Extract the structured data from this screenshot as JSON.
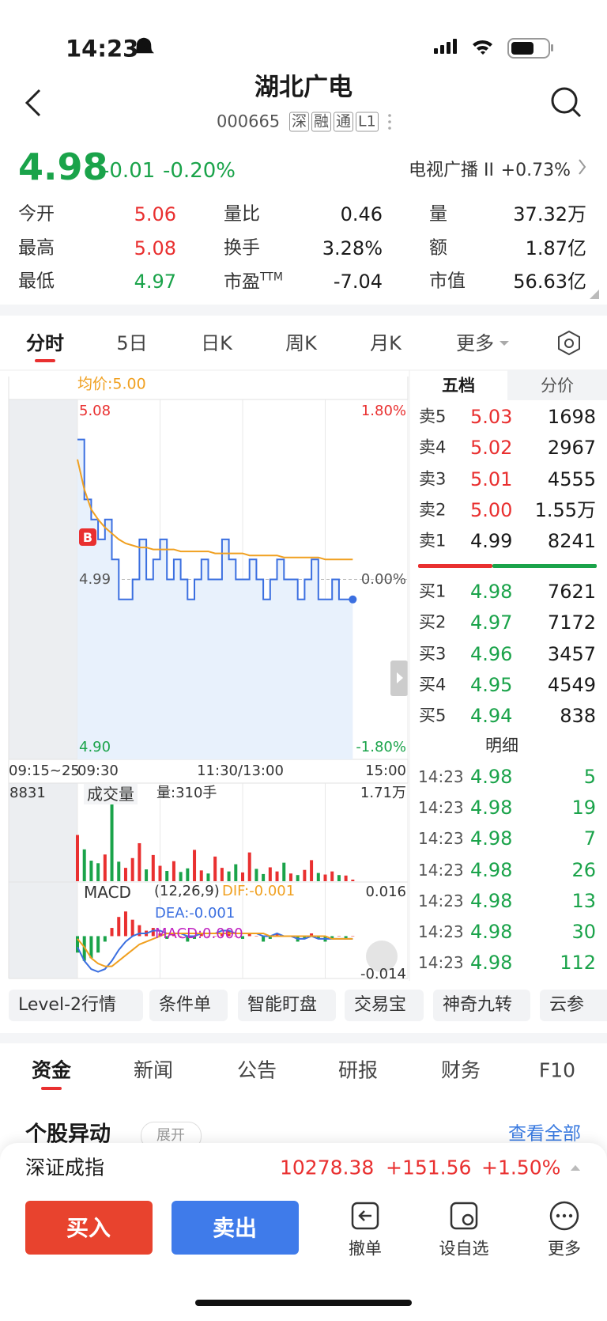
{
  "status_bar": {
    "time": "14:23"
  },
  "header": {
    "title": "湖北广电",
    "code": "000665",
    "tags": [
      "深",
      "融",
      "通",
      "L1"
    ]
  },
  "quote": {
    "price": "4.98",
    "change": "-0.01",
    "change_pct": "-0.20%",
    "sector": "电视广播 II",
    "sector_change": "+0.73%"
  },
  "stats": [
    {
      "label": "今开",
      "value": "5.06",
      "color": "#e93030"
    },
    {
      "label": "量比",
      "value": "0.46"
    },
    {
      "label": "量",
      "value": "37.32万"
    },
    {
      "label": "最高",
      "value": "5.08",
      "color": "#e93030"
    },
    {
      "label": "换手",
      "value": "3.28%"
    },
    {
      "label": "额",
      "value": "1.87亿"
    },
    {
      "label": "最低",
      "value": "4.97",
      "color": "#1aa34a"
    },
    {
      "label": "市盈",
      "sup": "TTM",
      "value": "-7.04"
    },
    {
      "label": "市值",
      "value": "56.63亿"
    }
  ],
  "period_tabs": [
    "分时",
    "5日",
    "日K",
    "周K",
    "月K",
    "更多"
  ],
  "chart_data": {
    "type": "line",
    "avg_label": "均价:5.00",
    "buy_marker": "B",
    "x_labels": [
      "09:15~25",
      "09:30",
      "11:30/13:00",
      "15:00"
    ],
    "price": [
      5.06,
      5.03,
      5.02,
      5.01,
      5.02,
      5.0,
      4.98,
      4.98,
      4.99,
      5.01,
      4.99,
      5.0,
      5.01,
      4.99,
      5.0,
      4.99,
      4.98,
      4.99,
      5.0,
      4.99,
      4.99,
      5.01,
      5.0,
      4.99,
      4.99,
      5.0,
      4.99,
      4.98,
      4.99,
      5.0,
      4.99,
      4.99,
      4.98,
      4.99,
      5.0,
      4.98,
      4.98,
      4.99,
      4.98,
      4.98,
      4.98
    ],
    "avg": [
      5.05,
      5.035,
      5.025,
      5.02,
      5.016,
      5.013,
      5.01,
      5.008,
      5.007,
      5.006,
      5.006,
      5.005,
      5.005,
      5.005,
      5.005,
      5.004,
      5.004,
      5.004,
      5.004,
      5.004,
      5.003,
      5.003,
      5.003,
      5.003,
      5.003,
      5.002,
      5.002,
      5.002,
      5.002,
      5.002,
      5.001,
      5.001,
      5.001,
      5.001,
      5.001,
      5.001,
      5.0,
      5.0,
      5.0,
      5.0,
      5.0
    ],
    "price_color": "#3b6fe0",
    "avg_color": "#f0a020",
    "ylim": [
      4.9,
      5.08
    ],
    "yticks": [
      {
        "value": 5.08,
        "label": "5.08"
      },
      {
        "value": 4.99,
        "label": "4.99"
      },
      {
        "value": 4.9,
        "label": "4.90"
      }
    ],
    "y2lim": [
      -1.8,
      1.8
    ],
    "y2ticks": [
      {
        "value": 1.8,
        "label": "1.80%"
      },
      {
        "value": 0,
        "label": "0.00%"
      },
      {
        "value": -1.8,
        "label": "-1.80%"
      }
    ],
    "volume": {
      "label": "成交量",
      "current": "量:310手",
      "premarket": "8831",
      "values": [
        9000,
        6200,
        4000,
        3500,
        5200,
        17100,
        3800,
        2600,
        4500,
        7400,
        2300,
        5100,
        3000,
        2000,
        3900,
        1800,
        2500,
        6100,
        2100,
        1500,
        4800,
        2600,
        1900,
        3300,
        1700,
        5600,
        2400,
        1400,
        2700,
        1900,
        3600,
        1500,
        1200,
        2200,
        4100,
        1600,
        1300,
        1900,
        1200,
        1100,
        310
      ],
      "ylim": [
        0,
        17100
      ],
      "yticks": [
        {
          "value": 17100,
          "label": "1.71万"
        }
      ]
    },
    "macd": {
      "label": "MACD",
      "params": "(12,26,9)",
      "dif_label": "DIF:-0.001",
      "dea_label": "DEA:-0.001",
      "macd_label": "MACD:0.000",
      "hist": [
        -0.006,
        -0.009,
        -0.008,
        -0.006,
        -0.002,
        0.003,
        0.007,
        0.009,
        0.006,
        0.004,
        0.002,
        0.003,
        0.001,
        -0.001,
        0.001,
        0.0,
        -0.002,
        -0.001,
        0.001,
        0.0,
        0.0,
        0.001,
        0.002,
        0.0,
        -0.001,
        0.001,
        0.0,
        -0.002,
        -0.001,
        0.001,
        0.0,
        0.0,
        -0.002,
        -0.001,
        0.001,
        -0.001,
        -0.002,
        -0.001,
        0.0,
        -0.001,
        0.0
      ],
      "dif": [
        -0.004,
        -0.009,
        -0.012,
        -0.013,
        -0.012,
        -0.009,
        -0.005,
        -0.002,
        0.0,
        0.001,
        0.001,
        0.002,
        0.002,
        0.001,
        0.001,
        0.001,
        0.0,
        0.0,
        0.001,
        0.001,
        0.001,
        0.002,
        0.002,
        0.001,
        0.001,
        0.001,
        0.001,
        0.0,
        0.0,
        0.001,
        0.0,
        0.0,
        -0.001,
        -0.001,
        0.0,
        -0.001,
        -0.001,
        -0.001,
        -0.001,
        -0.001,
        -0.001
      ],
      "dea": [
        -0.001,
        -0.004,
        -0.008,
        -0.01,
        -0.011,
        -0.011,
        -0.009,
        -0.007,
        -0.005,
        -0.003,
        -0.002,
        -0.001,
        0.0,
        0.001,
        0.001,
        0.001,
        0.001,
        0.001,
        0.001,
        0.001,
        0.001,
        0.001,
        0.001,
        0.001,
        0.001,
        0.001,
        0.001,
        0.001,
        0.0,
        0.0,
        0.0,
        0.0,
        0.0,
        0.0,
        0.0,
        0.0,
        0.0,
        -0.001,
        -0.001,
        -0.001,
        -0.001
      ],
      "ylim": [
        -0.014,
        0.016
      ],
      "yticks": [
        0.016,
        -0.014
      ]
    }
  },
  "order_book": {
    "tabs": [
      "五档",
      "分价"
    ],
    "asks": [
      {
        "label": "卖5",
        "price": "5.03",
        "volume": "1698",
        "color": "#e93030"
      },
      {
        "label": "卖4",
        "price": "5.02",
        "volume": "2967",
        "color": "#e93030"
      },
      {
        "label": "卖3",
        "price": "5.01",
        "volume": "4555",
        "color": "#e93030"
      },
      {
        "label": "卖2",
        "price": "5.00",
        "volume": "1.55万",
        "color": "#e93030"
      },
      {
        "label": "卖1",
        "price": "4.99",
        "volume": "8241",
        "color": "#1a1a1a"
      }
    ],
    "bids": [
      {
        "label": "买1",
        "price": "4.98",
        "volume": "7621",
        "color": "#1aa34a"
      },
      {
        "label": "买2",
        "price": "4.97",
        "volume": "7172",
        "color": "#1aa34a"
      },
      {
        "label": "买3",
        "price": "4.96",
        "volume": "3457",
        "color": "#1aa34a"
      },
      {
        "label": "买4",
        "price": "4.95",
        "volume": "4549",
        "color": "#1aa34a"
      },
      {
        "label": "买5",
        "price": "4.94",
        "volume": "838",
        "color": "#1aa34a"
      }
    ],
    "detail_title": "明细",
    "trades": [
      {
        "time": "14:23",
        "price": "4.98",
        "volume": "5"
      },
      {
        "time": "14:23",
        "price": "4.98",
        "volume": "19"
      },
      {
        "time": "14:23",
        "price": "4.98",
        "volume": "7"
      },
      {
        "time": "14:23",
        "price": "4.98",
        "volume": "26"
      },
      {
        "time": "14:23",
        "price": "4.98",
        "volume": "13"
      },
      {
        "time": "14:23",
        "price": "4.98",
        "volume": "30"
      },
      {
        "time": "14:23",
        "price": "4.98",
        "volume": "112"
      }
    ]
  },
  "features": [
    "Level-2行情",
    "条件单",
    "智能盯盘",
    "交易宝",
    "神奇九转",
    "云参"
  ],
  "info_tabs": [
    "资金",
    "新闻",
    "公告",
    "研报",
    "财务",
    "F10"
  ],
  "section": {
    "title": "个股异动",
    "toggle": "展开",
    "link": "查看全部"
  },
  "index_bar": {
    "name": "深证成指",
    "value": "10278.38",
    "change": "+151.56",
    "change_pct": "+1.50%"
  },
  "actions": {
    "buy": "买入",
    "sell": "卖出",
    "items": [
      "撤单",
      "设自选",
      "更多"
    ]
  }
}
